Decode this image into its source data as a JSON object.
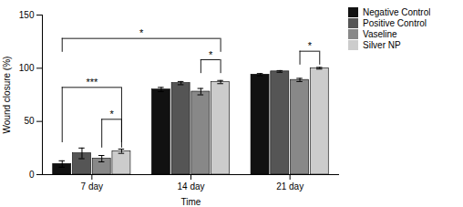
{
  "chart_data": {
    "type": "bar",
    "xlabel": "Time",
    "ylabel": "Wound closure (%)",
    "categories": [
      "7 day",
      "14 day",
      "21 day"
    ],
    "series": [
      {
        "name": "Negative Control",
        "color": "#111111",
        "values": [
          10,
          80,
          94
        ],
        "errors": [
          3,
          2,
          1
        ]
      },
      {
        "name": "Positive Control",
        "color": "#555555",
        "values": [
          20,
          86,
          97
        ],
        "errors": [
          5,
          1.5,
          0.8
        ]
      },
      {
        "name": "Vaseline",
        "color": "#888888",
        "values": [
          15,
          78,
          89
        ],
        "errors": [
          3,
          3,
          1.5
        ]
      },
      {
        "name": "Silver NP",
        "color": "#cccccc",
        "values": [
          22,
          87,
          100
        ],
        "errors": [
          2,
          1.5,
          0.8
        ]
      }
    ],
    "ylim": [
      0,
      150
    ],
    "yticks": [
      0,
      50,
      100,
      150
    ],
    "grid": false,
    "legend": "upper right",
    "annotations": [
      {
        "text": "***",
        "from": {
          "category": "7 day",
          "series": "Negative Control"
        },
        "to": {
          "category": "7 day",
          "series": "Silver NP"
        },
        "y": 82,
        "y_base": 30
      },
      {
        "text": "*",
        "from": {
          "category": "7 day",
          "series": "Vaseline"
        },
        "to": {
          "category": "7 day",
          "series": "Silver NP"
        },
        "y": 52,
        "y_base": 25
      },
      {
        "text": "*",
        "from": {
          "category": "7 day",
          "series": "Negative Control"
        },
        "to": {
          "category": "14 day",
          "series": "Silver NP"
        },
        "y": 128,
        "y_base": 115
      },
      {
        "text": "*",
        "from": {
          "category": "14 day",
          "series": "Vaseline"
        },
        "to": {
          "category": "14 day",
          "series": "Silver NP"
        },
        "y": 108,
        "y_base": 95
      },
      {
        "text": "*",
        "from": {
          "category": "21 day",
          "series": "Vaseline"
        },
        "to": {
          "category": "21 day",
          "series": "Silver NP"
        },
        "y": 116,
        "y_base": 103
      }
    ]
  }
}
